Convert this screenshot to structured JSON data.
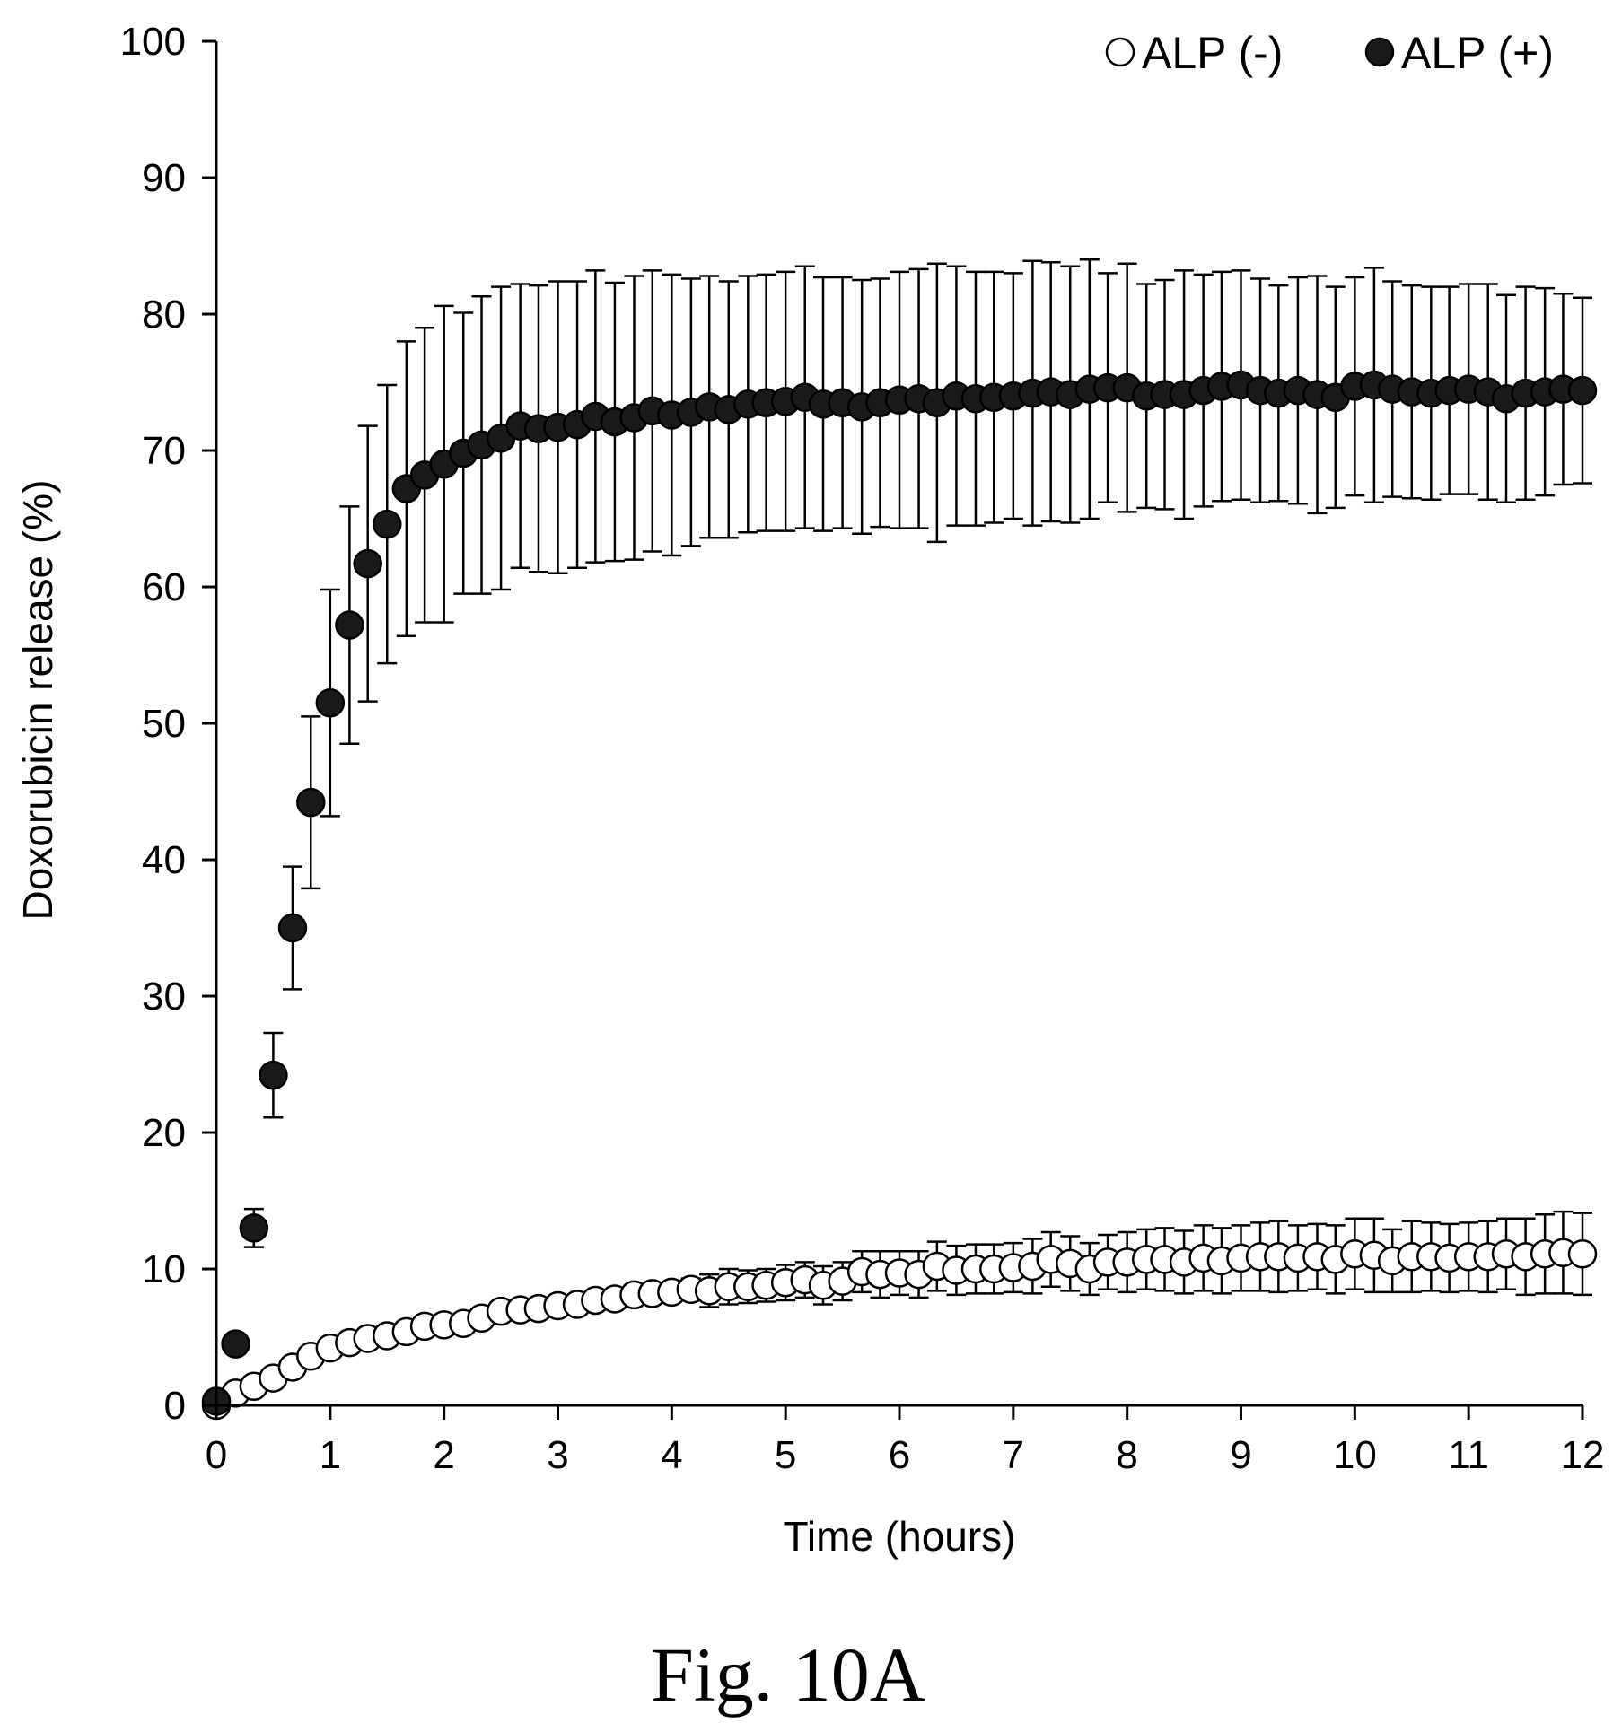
{
  "caption": "Fig. 10A",
  "chart_data": {
    "type": "scatter",
    "title": "",
    "xlabel": "Time (hours)",
    "ylabel": "Doxorubicin release (%)",
    "xlim": [
      0,
      12
    ],
    "ylim": [
      0,
      100
    ],
    "x_ticks": [
      0,
      1,
      2,
      3,
      4,
      5,
      6,
      7,
      8,
      9,
      10,
      11,
      12
    ],
    "y_ticks": [
      0,
      10,
      20,
      30,
      40,
      50,
      60,
      70,
      80,
      90,
      100
    ],
    "grid": false,
    "legend_position": "top-right",
    "series": [
      {
        "name": "ALP (-)",
        "marker": "open-circle",
        "color": "#000000",
        "x": [
          0.0,
          0.17,
          0.33,
          0.5,
          0.67,
          0.83,
          1.0,
          1.17,
          1.33,
          1.5,
          1.67,
          1.83,
          2.0,
          2.17,
          2.33,
          2.5,
          2.67,
          2.83,
          3.0,
          3.17,
          3.33,
          3.5,
          3.67,
          3.83,
          4.0,
          4.17,
          4.33,
          4.5,
          4.67,
          4.83,
          5.0,
          5.17,
          5.33,
          5.5,
          5.67,
          5.83,
          6.0,
          6.17,
          6.33,
          6.5,
          6.67,
          6.83,
          7.0,
          7.17,
          7.33,
          7.5,
          7.67,
          7.83,
          8.0,
          8.17,
          8.33,
          8.5,
          8.67,
          8.83,
          9.0,
          9.17,
          9.33,
          9.5,
          9.67,
          9.83,
          10.0,
          10.17,
          10.33,
          10.5,
          10.67,
          10.83,
          11.0,
          11.17,
          11.33,
          11.5,
          11.67,
          11.83,
          12.0
        ],
        "y": [
          0.0,
          0.9,
          1.4,
          2.0,
          2.8,
          3.6,
          4.2,
          4.6,
          4.9,
          5.1,
          5.4,
          5.8,
          5.9,
          6.0,
          6.4,
          6.9,
          7.0,
          7.1,
          7.3,
          7.4,
          7.7,
          7.8,
          8.1,
          8.2,
          8.3,
          8.5,
          8.4,
          8.7,
          8.7,
          8.8,
          9.0,
          9.2,
          8.8,
          9.1,
          9.8,
          9.6,
          9.7,
          9.6,
          10.2,
          9.9,
          10.0,
          10.0,
          10.1,
          10.2,
          10.7,
          10.4,
          10.0,
          10.5,
          10.5,
          10.7,
          10.7,
          10.5,
          10.8,
          10.6,
          10.8,
          10.9,
          10.9,
          10.8,
          10.9,
          10.7,
          11.1,
          11.0,
          10.6,
          10.9,
          10.9,
          10.8,
          10.9,
          10.9,
          11.1,
          10.9,
          11.1,
          11.2,
          11.1
        ],
        "error": [
          0.2,
          0.3,
          0.3,
          0.3,
          0.3,
          0.3,
          0.3,
          0.3,
          0.3,
          0.3,
          0.3,
          0.3,
          0.3,
          0.3,
          0.4,
          0.4,
          0.4,
          0.4,
          0.4,
          0.4,
          0.4,
          0.5,
          0.5,
          0.5,
          0.6,
          0.8,
          1.2,
          1.3,
          1.2,
          1.2,
          1.3,
          1.3,
          1.4,
          1.4,
          1.5,
          1.7,
          1.6,
          1.7,
          1.8,
          1.8,
          1.8,
          1.8,
          1.8,
          2.0,
          2.0,
          2.0,
          1.9,
          2.0,
          2.2,
          2.2,
          2.3,
          2.3,
          2.4,
          2.4,
          2.4,
          2.5,
          2.6,
          2.4,
          2.4,
          2.5,
          2.6,
          2.7,
          2.3,
          2.6,
          2.5,
          2.5,
          2.5,
          2.6,
          2.6,
          2.8,
          2.9,
          3.0,
          3.0
        ]
      },
      {
        "name": "ALP (+)",
        "marker": "filled-circle",
        "color": "#000000",
        "x": [
          0.0,
          0.17,
          0.33,
          0.5,
          0.67,
          0.83,
          1.0,
          1.17,
          1.33,
          1.5,
          1.67,
          1.83,
          2.0,
          2.17,
          2.33,
          2.5,
          2.67,
          2.83,
          3.0,
          3.17,
          3.33,
          3.5,
          3.67,
          3.83,
          4.0,
          4.17,
          4.33,
          4.5,
          4.67,
          4.83,
          5.0,
          5.17,
          5.33,
          5.5,
          5.67,
          5.83,
          6.0,
          6.17,
          6.33,
          6.5,
          6.67,
          6.83,
          7.0,
          7.17,
          7.33,
          7.5,
          7.67,
          7.83,
          8.0,
          8.17,
          8.33,
          8.5,
          8.67,
          8.83,
          9.0,
          9.17,
          9.33,
          9.5,
          9.67,
          9.83,
          10.0,
          10.17,
          10.33,
          10.5,
          10.67,
          10.83,
          11.0,
          11.17,
          11.33,
          11.5,
          11.67,
          11.83,
          12.0
        ],
        "y": [
          0.3,
          4.5,
          13.0,
          24.2,
          35.0,
          44.2,
          51.5,
          57.2,
          61.7,
          64.6,
          67.2,
          68.2,
          69.0,
          69.8,
          70.4,
          70.9,
          71.8,
          71.6,
          71.7,
          71.9,
          72.5,
          72.1,
          72.4,
          72.9,
          72.6,
          72.8,
          73.2,
          73.0,
          73.4,
          73.5,
          73.6,
          73.9,
          73.4,
          73.5,
          73.2,
          73.5,
          73.7,
          73.8,
          73.5,
          74.0,
          73.8,
          73.9,
          74.0,
          74.2,
          74.3,
          74.1,
          74.5,
          74.6,
          74.6,
          74.0,
          74.1,
          74.1,
          74.4,
          74.7,
          74.8,
          74.4,
          74.2,
          74.4,
          74.1,
          73.9,
          74.7,
          74.8,
          74.5,
          74.3,
          74.2,
          74.4,
          74.5,
          74.3,
          73.8,
          74.2,
          74.3,
          74.5,
          74.4
        ],
        "error": [
          0.3,
          0.5,
          1.4,
          3.1,
          4.5,
          6.3,
          8.3,
          8.7,
          10.1,
          10.2,
          10.8,
          10.8,
          11.6,
          10.3,
          10.9,
          11.1,
          10.4,
          10.5,
          10.7,
          10.5,
          10.7,
          10.2,
          10.4,
          10.3,
          10.3,
          9.8,
          9.6,
          9.4,
          9.4,
          9.4,
          9.5,
          9.6,
          9.3,
          9.2,
          9.3,
          9.1,
          9.4,
          9.5,
          10.2,
          9.5,
          9.3,
          9.2,
          9.0,
          9.7,
          9.5,
          9.4,
          9.5,
          8.4,
          9.1,
          8.2,
          8.4,
          9.1,
          8.5,
          8.4,
          8.4,
          8.2,
          7.9,
          8.3,
          8.7,
          8.1,
          8.0,
          8.6,
          7.9,
          7.8,
          7.8,
          7.6,
          7.7,
          7.9,
          7.6,
          7.8,
          7.6,
          7.0,
          6.8
        ]
      }
    ]
  }
}
